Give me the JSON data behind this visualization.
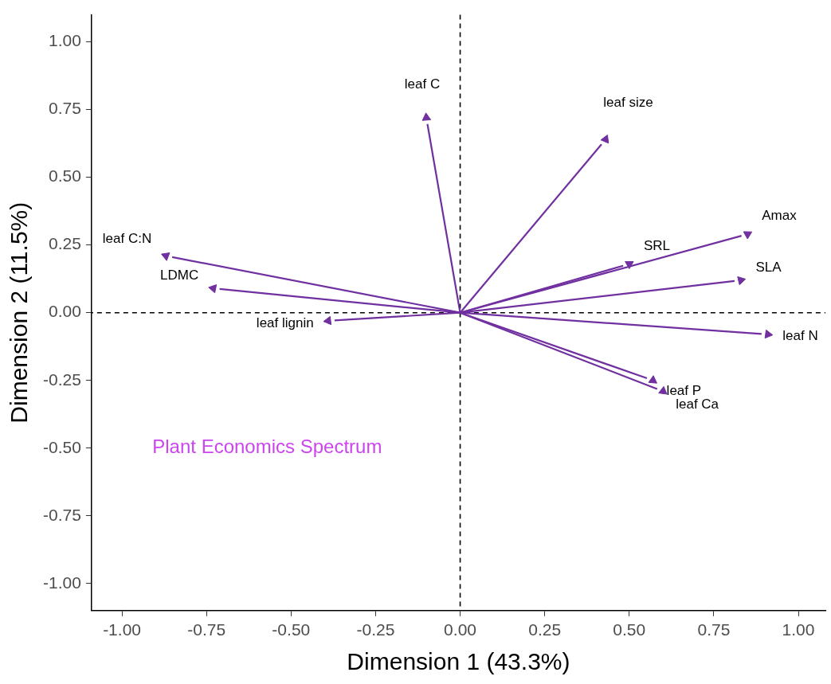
{
  "chart_data": {
    "type": "scatter",
    "xlabel": "Dimension 1 (43.3%)",
    "ylabel": "Dimension 2 (11.5%)",
    "xlim": [
      -1.09,
      1.08
    ],
    "ylim": [
      -1.1,
      1.1
    ],
    "xticks": [
      {
        "value": -1,
        "label": "-1.00"
      },
      {
        "value": -0.75,
        "label": "-0.75"
      },
      {
        "value": -0.5,
        "label": "-0.50"
      },
      {
        "value": -0.25,
        "label": "-0.25"
      },
      {
        "value": 0,
        "label": "0.00"
      },
      {
        "value": 0.25,
        "label": "0.25"
      },
      {
        "value": 0.5,
        "label": "0.50"
      },
      {
        "value": 0.75,
        "label": "0.75"
      },
      {
        "value": 1,
        "label": "1.00"
      }
    ],
    "yticks": [
      {
        "value": -1,
        "label": "-1.00"
      },
      {
        "value": -0.75,
        "label": "-0.75"
      },
      {
        "value": -0.5,
        "label": "-0.50"
      },
      {
        "value": -0.25,
        "label": "-0.25"
      },
      {
        "value": 0,
        "label": "0.00"
      },
      {
        "value": 0.25,
        "label": "0.25"
      },
      {
        "value": 0.5,
        "label": "0.50"
      },
      {
        "value": 0.75,
        "label": "0.75"
      },
      {
        "value": 1,
        "label": "1.00"
      }
    ],
    "grid": false,
    "marker": "triangle",
    "series": [
      {
        "color": "#7030a0",
        "x": [
          -0.1,
          0.43,
          0.85,
          0.5,
          0.83,
          0.91,
          0.57,
          0.6,
          -0.39,
          -0.73,
          -0.87
        ],
        "values": [
          0.72,
          0.64,
          0.29,
          0.18,
          0.12,
          -0.08,
          -0.25,
          -0.29,
          -0.03,
          0.09,
          0.21
        ]
      }
    ],
    "ref_lines": [
      {
        "axis": "x",
        "value": 0,
        "line_style": "dashed",
        "color": "#000000"
      },
      {
        "axis": "y",
        "value": 0,
        "line_style": "dashed",
        "color": "#000000"
      }
    ],
    "annotations": [
      {
        "text": "leaf C",
        "x": -0.1,
        "y": 0.72
      },
      {
        "text": "leaf size",
        "x": 0.43,
        "y": 0.64
      },
      {
        "text": "Amax",
        "x": 0.85,
        "y": 0.29
      },
      {
        "text": "SRL",
        "x": 0.5,
        "y": 0.18
      },
      {
        "text": "SLA",
        "x": 0.83,
        "y": 0.12
      },
      {
        "text": "leaf N",
        "x": 0.91,
        "y": -0.08
      },
      {
        "text": "leaf P",
        "x": 0.57,
        "y": -0.25
      },
      {
        "text": "leaf Ca",
        "x": 0.6,
        "y": -0.29
      },
      {
        "text": "leaf lignin",
        "x": -0.39,
        "y": -0.03
      },
      {
        "text": "LDMC",
        "x": -0.73,
        "y": 0.09
      },
      {
        "text": "leaf C:N",
        "x": -0.87,
        "y": 0.21
      },
      "Plant Economics Spectrum"
    ]
  }
}
